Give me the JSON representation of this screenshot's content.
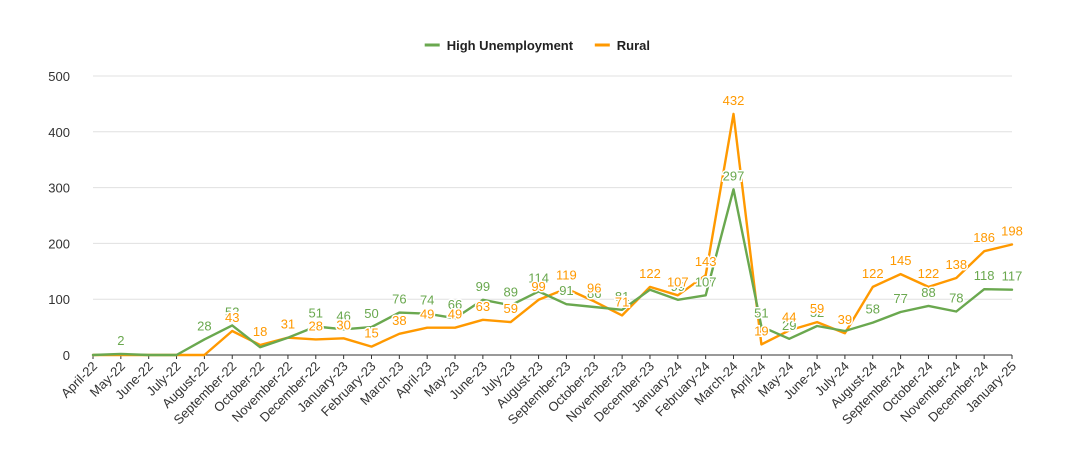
{
  "chart_data": {
    "type": "line",
    "title": "",
    "xlabel": "",
    "ylabel": "",
    "ylim": [
      0,
      500
    ],
    "yticks": [
      0,
      100,
      200,
      300,
      400,
      500
    ],
    "grid": true,
    "legend_position": "top-center",
    "categories": [
      "April-22",
      "May-22",
      "June-22",
      "July-22",
      "August-22",
      "September-22",
      "October-22",
      "November-22",
      "December-22",
      "January-23",
      "February-23",
      "March-23",
      "April-23",
      "May-23",
      "June-23",
      "July-23",
      "August-23",
      "September-23",
      "October-23",
      "November-23",
      "December-23",
      "January-24",
      "February-24",
      "March-24",
      "April-24",
      "May-24",
      "June-24",
      "July-24",
      "August-24",
      "September-24",
      "October-24",
      "November-24",
      "December-24",
      "January-25"
    ],
    "series": [
      {
        "name": "High Unemployment",
        "color": "#6aa84f",
        "values": [
          0,
          2,
          0,
          0,
          28,
          53,
          14,
          31,
          51,
          46,
          50,
          76,
          74,
          66,
          99,
          89,
          114,
          91,
          86,
          81,
          117,
          99,
          107,
          297,
          51,
          29,
          52,
          43,
          58,
          77,
          88,
          78,
          118,
          117
        ],
        "labels": [
          "",
          "2",
          "",
          "",
          "28",
          "53",
          "",
          "",
          "51",
          "46",
          "50",
          "76",
          "74",
          "66",
          "99",
          "89",
          "114",
          "91",
          "86",
          "81",
          "",
          "99",
          "107",
          "297",
          "51",
          "29",
          "52",
          "",
          "58",
          "77",
          "88",
          "78",
          "118",
          "117"
        ]
      },
      {
        "name": "Rural",
        "color": "#ff9900",
        "values": [
          0,
          0,
          0,
          0,
          0,
          43,
          18,
          31,
          28,
          30,
          15,
          38,
          49,
          49,
          63,
          59,
          99,
          119,
          96,
          71,
          122,
          107,
          143,
          432,
          19,
          44,
          59,
          39,
          122,
          145,
          122,
          138,
          186,
          198
        ],
        "labels": [
          "",
          "",
          "",
          "",
          "",
          "43",
          "18",
          "31",
          "28",
          "30",
          "15",
          "38",
          "49",
          "49",
          "63",
          "59",
          "99",
          "119",
          "96",
          "71",
          "122",
          "107",
          "143",
          "432",
          "19",
          "44",
          "59",
          "39",
          "122",
          "145",
          "122",
          "138",
          "186",
          "198"
        ]
      }
    ]
  }
}
